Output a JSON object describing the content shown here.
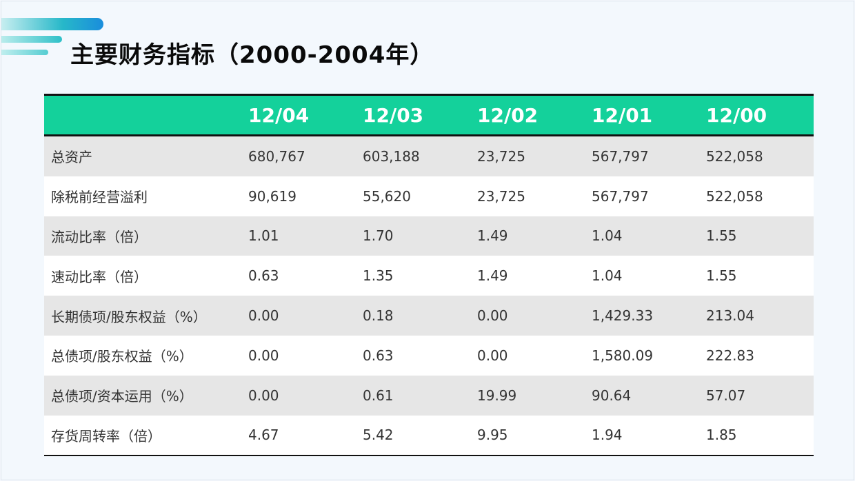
{
  "title": "主要财务指标（2000-2004年）",
  "table": {
    "columns": [
      "",
      "12/04",
      "12/03",
      "12/02",
      "12/01",
      "12/00"
    ],
    "rows": [
      [
        "总资产",
        "680,767",
        "603,188",
        "23,725",
        "567,797",
        "522,058"
      ],
      [
        "除税前经营溢利",
        "90,619",
        "55,620",
        "23,725",
        "567,797",
        "522,058"
      ],
      [
        "流动比率（倍）",
        "1.01",
        "1.70",
        "1.49",
        "1.04",
        "1.55"
      ],
      [
        "速动比率（倍）",
        "0.63",
        "1.35",
        "1.49",
        "1.04",
        "1.55"
      ],
      [
        "长期债项/股东权益（%）",
        "0.00",
        "0.18",
        "0.00",
        "1,429.33",
        "213.04"
      ],
      [
        "总债项/股东权益（%）",
        "0.00",
        "0.63",
        "0.00",
        "1,580.09",
        "222.83"
      ],
      [
        "总债项/资本运用（%）",
        "0.00",
        "0.61",
        "19.99",
        "90.64",
        "57.07"
      ],
      [
        "存货周转率（倍）",
        "4.67",
        "5.42",
        "9.95",
        "1.94",
        "1.85"
      ]
    ]
  },
  "colors": {
    "header_bg": "#14d19b",
    "accent_blue": "#1a8ddc",
    "stripe": "#e6e6e6"
  }
}
